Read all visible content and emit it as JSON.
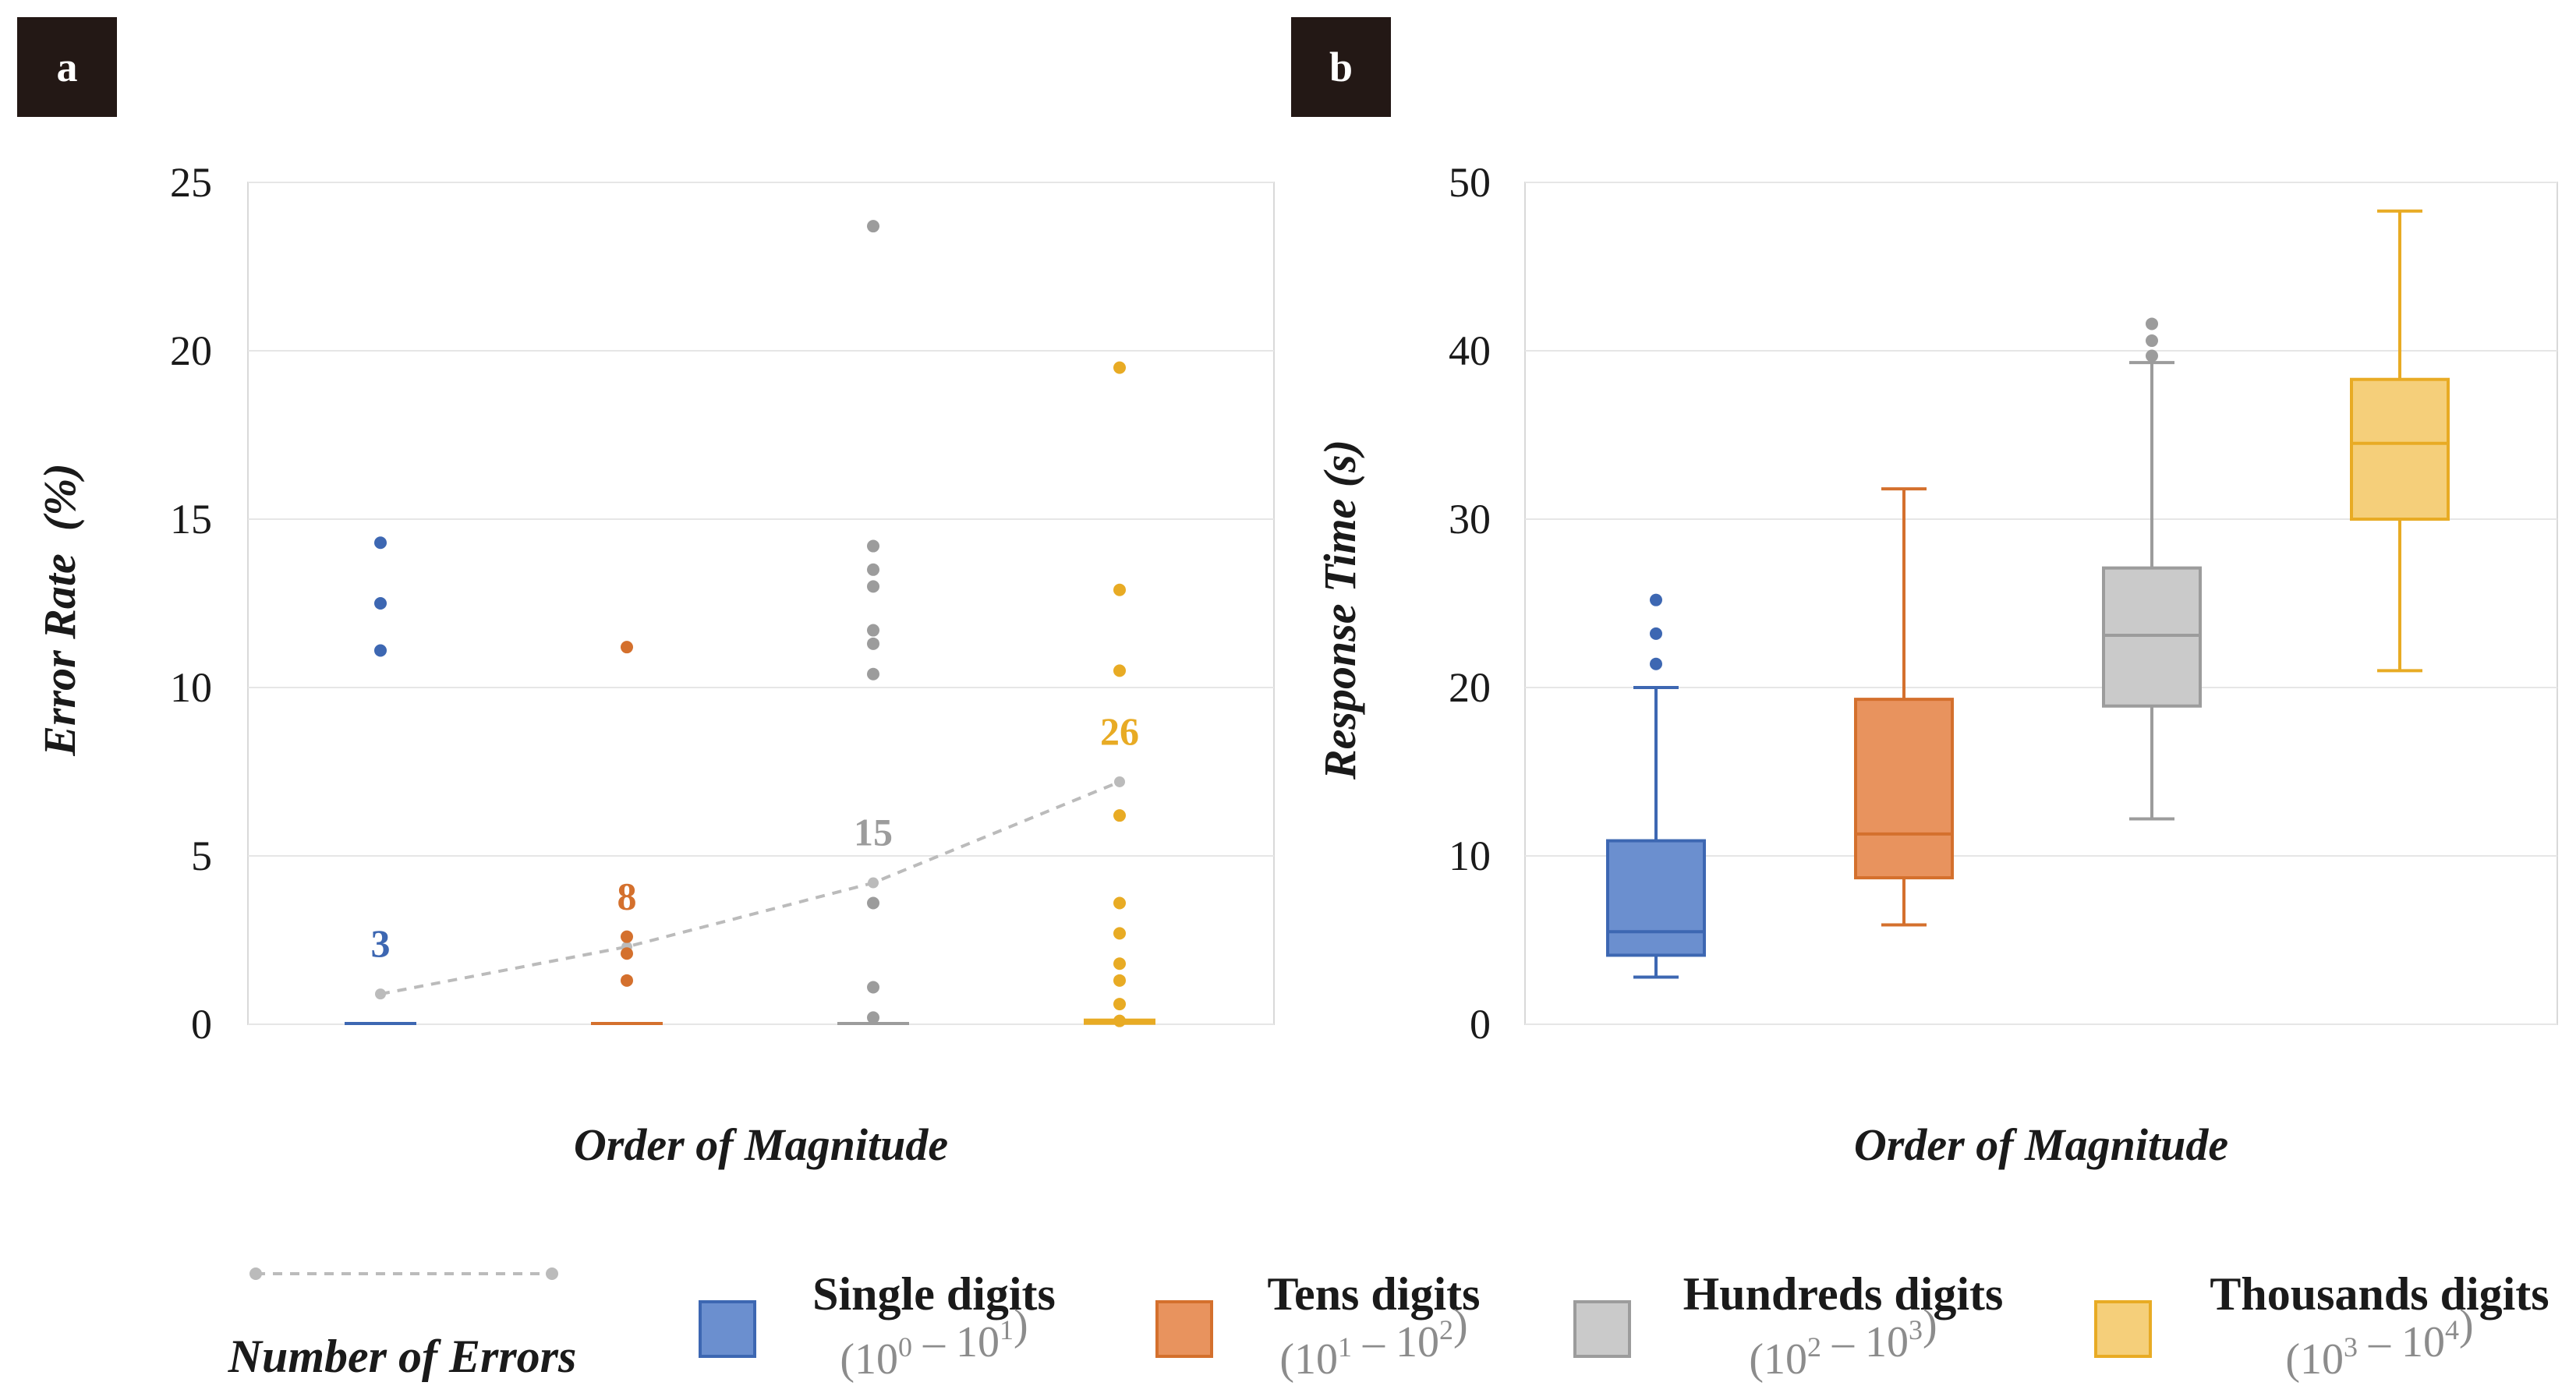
{
  "colors": {
    "single": "#3d67b2",
    "tens": "#d4702d",
    "hundreds": "#9c9c9c",
    "thousands": "#e8ab24",
    "single_fill": "#6b8fcf",
    "tens_fill": "#e8935e",
    "hundreds_fill": "#cacaca",
    "thousands_fill": "#f5cf7a",
    "errors_line": "#bbbbbb",
    "panel_badge": "#231815",
    "grid": "#e6e6e6"
  },
  "chart_data": [
    {
      "panel": "a",
      "type": "scatter",
      "title": "",
      "xlabel": "Order of Magnitude",
      "ylabel": "Error Rate  (%)",
      "ylim": [
        0,
        25
      ],
      "yticks": [
        "0",
        "5",
        "10",
        "15",
        "20",
        "25"
      ],
      "grid": true,
      "categories": [
        "Single digits",
        "Tens digits",
        "Hundreds digits",
        "Thousands digits"
      ],
      "series": [
        {
          "name": "Single digits",
          "median": 0,
          "outliers": [
            14.3,
            12.5,
            11.1
          ]
        },
        {
          "name": "Tens digits",
          "median": 0,
          "outliers": [
            11.2,
            2.6,
            2.1,
            1.3
          ]
        },
        {
          "name": "Hundreds digits",
          "median": 0,
          "outliers": [
            23.7,
            14.2,
            13.5,
            13.0,
            11.7,
            11.3,
            10.4,
            3.6,
            1.1,
            0.2
          ]
        },
        {
          "name": "Thousands digits",
          "median": 0.1,
          "outliers": [
            19.5,
            12.9,
            10.5,
            6.2,
            3.6,
            2.7,
            1.8,
            1.3,
            0.6,
            0.1
          ]
        }
      ],
      "errors_line": {
        "name": "Number of Errors",
        "values": [
          0.9,
          2.3,
          4.2,
          7.2
        ],
        "labels": [
          "3",
          "8",
          "15",
          "26"
        ]
      }
    },
    {
      "panel": "b",
      "type": "box",
      "title": "",
      "xlabel": "Order of Magnitude",
      "ylabel": "Response Time (s)",
      "ylim": [
        0,
        50
      ],
      "yticks": [
        "0",
        "10",
        "20",
        "30",
        "40",
        "50"
      ],
      "grid": true,
      "categories": [
        "Single digits",
        "Tens digits",
        "Hundreds digits",
        "Thousands digits"
      ],
      "series": [
        {
          "name": "Single digits",
          "whisker_low": 2.8,
          "q1": 4.1,
          "median": 5.5,
          "q3": 10.9,
          "whisker_high": 20.0,
          "outliers": [
            25.2,
            23.2,
            21.4
          ]
        },
        {
          "name": "Tens digits",
          "whisker_low": 5.9,
          "q1": 8.7,
          "median": 11.3,
          "q3": 19.3,
          "whisker_high": 31.8,
          "outliers": []
        },
        {
          "name": "Hundreds digits",
          "whisker_low": 12.2,
          "q1": 18.9,
          "median": 23.1,
          "q3": 27.1,
          "whisker_high": 39.3,
          "outliers": [
            41.6,
            40.6,
            39.7
          ]
        },
        {
          "name": "Thousands digits",
          "whisker_low": 21.0,
          "q1": 30.0,
          "median": 34.5,
          "q3": 38.3,
          "whisker_high": 48.3,
          "outliers": []
        }
      ]
    }
  ],
  "legend": {
    "line_label": "Number of Errors",
    "items": [
      {
        "name": "Single digits",
        "range_base1": "10",
        "range_exp1": "0",
        "range_sep": "–",
        "range_base2": "10",
        "range_exp2": "1"
      },
      {
        "name": "Tens digits",
        "range_base1": "10",
        "range_exp1": "1",
        "range_sep": "–",
        "range_base2": "10",
        "range_exp2": "2"
      },
      {
        "name": "Hundreds digits",
        "range_base1": "10",
        "range_exp1": "2",
        "range_sep": "–",
        "range_base2": "10",
        "range_exp2": "3"
      },
      {
        "name": "Thousands digits",
        "range_base1": "10",
        "range_exp1": "3",
        "range_sep": "–",
        "range_base2": "10",
        "range_exp2": "4"
      }
    ]
  }
}
